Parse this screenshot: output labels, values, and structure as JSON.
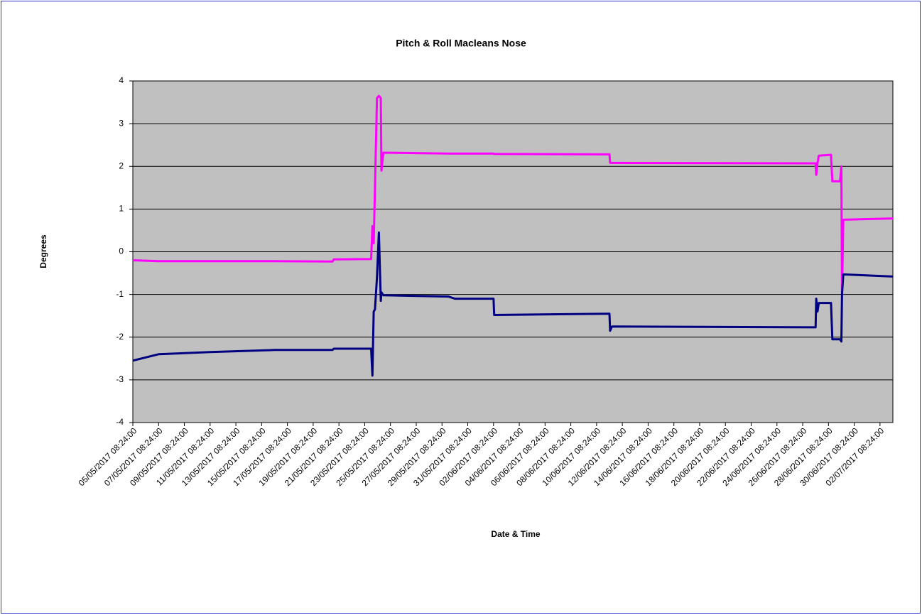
{
  "chart_data": {
    "type": "line",
    "title": "Pitch & Roll Macleans Nose",
    "x_label": "Date & Time",
    "y_label": "Degrees",
    "x": [
      "05/05/2017 08:24:00",
      "07/05/2017 08:24:00",
      "11/05/2017 08:24:00",
      "16/05/2017 08:24:00",
      "20/05/2017 20:24:00",
      "20/05/2017 22:48:00",
      "23/05/2017 20:24:00",
      "23/05/2017 22:48:00",
      "24/05/2017 01:12:00",
      "24/05/2017 03:36:00",
      "24/05/2017 07:12:00",
      "24/05/2017 10:48:00",
      "24/05/2017 14:24:00",
      "24/05/2017 15:36:00",
      "24/05/2017 19:12:00",
      "29/05/2017 20:24:00",
      "30/05/2017 08:24:00",
      "02/06/2017 08:24:00",
      "02/06/2017 09:36:00",
      "11/06/2017 08:24:00",
      "11/06/2017 09:36:00",
      "11/06/2017 13:12:00",
      "27/06/2017 08:24:00",
      "27/06/2017 09:36:00",
      "27/06/2017 12:00:00",
      "27/06/2017 14:24:00",
      "28/06/2017 13:12:00",
      "28/06/2017 15:36:00",
      "29/06/2017 06:00:00",
      "29/06/2017 08:24:00",
      "29/06/2017 09:36:00",
      "29/06/2017 12:00:00",
      "03/07/2017 08:24:00"
    ],
    "series": [
      {
        "color": "#ff00ff",
        "values": [
          -0.2,
          -0.22,
          -0.22,
          -0.22,
          -0.23,
          -0.18,
          -0.17,
          0.6,
          0.2,
          1.5,
          3.6,
          3.65,
          3.6,
          1.9,
          2.32,
          2.3,
          2.3,
          2.3,
          2.29,
          2.28,
          2.08,
          2.08,
          2.07,
          1.8,
          2.08,
          2.25,
          2.27,
          1.65,
          1.65,
          2.0,
          -1.0,
          0.75,
          0.78
        ]
      },
      {
        "color": "#000080",
        "values": [
          -2.55,
          -2.4,
          -2.35,
          -2.3,
          -2.3,
          -2.27,
          -2.27,
          -2.9,
          -1.4,
          -1.35,
          -0.6,
          0.45,
          -1.15,
          -0.95,
          -1.02,
          -1.05,
          -1.1,
          -1.1,
          -1.48,
          -1.45,
          -1.85,
          -1.75,
          -1.77,
          -1.1,
          -1.4,
          -1.2,
          -1.2,
          -2.05,
          -2.05,
          -2.1,
          -1.0,
          -0.53,
          -0.58
        ]
      }
    ],
    "xlim": [
      "05/05/2017 08:24:00",
      "03/07/2017 08:24:00"
    ],
    "xticks": [
      "05/05/2017 08:24:00",
      "07/05/2017 08:24:00",
      "09/05/2017 08:24:00",
      "11/05/2017 08:24:00",
      "13/05/2017 08:24:00",
      "15/05/2017 08:24:00",
      "17/05/2017 08:24:00",
      "19/05/2017 08:24:00",
      "21/05/2017 08:24:00",
      "23/05/2017 08:24:00",
      "25/05/2017 08:24:00",
      "27/05/2017 08:24:00",
      "29/05/2017 08:24:00",
      "31/05/2017 08:24:00",
      "02/06/2017 08:24:00",
      "04/06/2017 08:24:00",
      "06/06/2017 08:24:00",
      "08/06/2017 08:24:00",
      "10/06/2017 08:24:00",
      "12/06/2017 08:24:00",
      "14/06/2017 08:24:00",
      "16/06/2017 08:24:00",
      "18/06/2017 08:24:00",
      "20/06/2017 08:24:00",
      "22/06/2017 08:24:00",
      "24/06/2017 08:24:00",
      "26/06/2017 08:24:00",
      "28/06/2017 08:24:00",
      "30/06/2017 08:24:00",
      "02/07/2017 08:24:00"
    ],
    "ylim": [
      -4,
      4
    ],
    "yticks": [
      -4,
      -3,
      -2,
      -1,
      0,
      1,
      2,
      3,
      4
    ],
    "grid": true,
    "plot_background": "#c0c0c0"
  }
}
